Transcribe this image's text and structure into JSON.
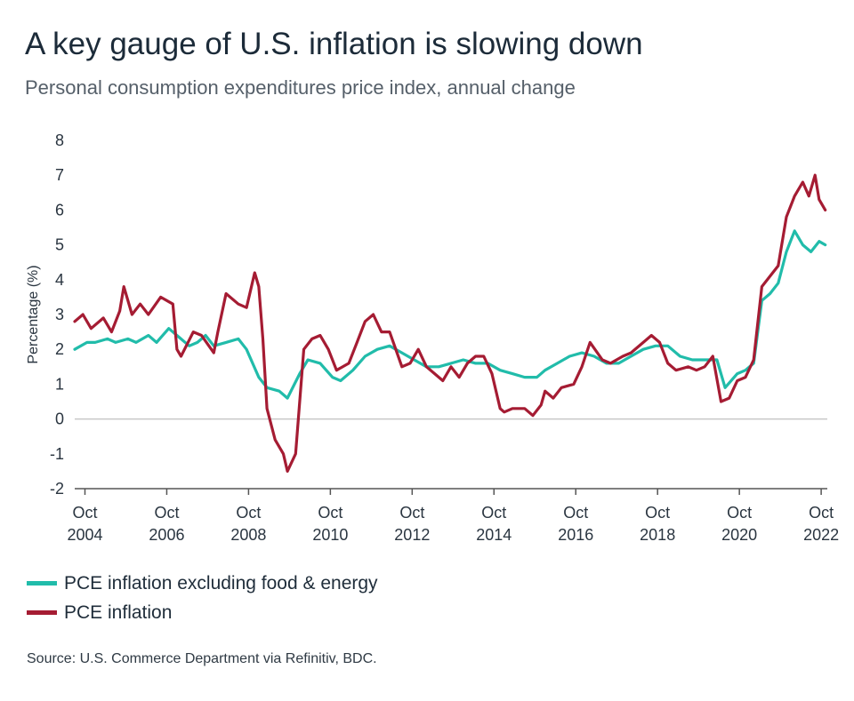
{
  "title": "A key gauge of U.S. inflation is slowing down",
  "subtitle": "Personal consumption expenditures price index, annual change",
  "source": "Source: U.S. Commerce Department via Refinitiv, BDC.",
  "colors": {
    "core": "#21bcaa",
    "headline": "#a51c33",
    "zero_line": "#c8c8c8",
    "axis": "#555555"
  },
  "chart_data": {
    "type": "line",
    "ylabel": "Percentage (%)",
    "ylim": [
      -2,
      8
    ],
    "yticks": [
      -2,
      -1,
      0,
      1,
      2,
      3,
      4,
      5,
      6,
      7,
      8
    ],
    "xlim": [
      2004.5,
      2022.9
    ],
    "xticks": [
      {
        "x": 2004.75,
        "month": "Oct",
        "year": "2004"
      },
      {
        "x": 2006.75,
        "month": "Oct",
        "year": "2006"
      },
      {
        "x": 2008.75,
        "month": "Oct",
        "year": "2008"
      },
      {
        "x": 2010.75,
        "month": "Oct",
        "year": "2010"
      },
      {
        "x": 2012.75,
        "month": "Oct",
        "year": "2012"
      },
      {
        "x": 2014.75,
        "month": "Oct",
        "year": "2014"
      },
      {
        "x": 2016.75,
        "month": "Oct",
        "year": "2016"
      },
      {
        "x": 2018.75,
        "month": "Oct",
        "year": "2018"
      },
      {
        "x": 2020.75,
        "month": "Oct",
        "year": "2020"
      },
      {
        "x": 2022.75,
        "month": "Oct",
        "year": "2022"
      }
    ],
    "series": [
      {
        "name": "PCE inflation excluding food & energy",
        "color": "#21bcaa",
        "points": [
          [
            2004.5,
            2.0
          ],
          [
            2004.8,
            2.2
          ],
          [
            2005.0,
            2.2
          ],
          [
            2005.3,
            2.3
          ],
          [
            2005.5,
            2.2
          ],
          [
            2005.8,
            2.3
          ],
          [
            2006.0,
            2.2
          ],
          [
            2006.3,
            2.4
          ],
          [
            2006.5,
            2.2
          ],
          [
            2006.8,
            2.6
          ],
          [
            2007.0,
            2.4
          ],
          [
            2007.3,
            2.1
          ],
          [
            2007.5,
            2.2
          ],
          [
            2007.7,
            2.4
          ],
          [
            2007.9,
            2.1
          ],
          [
            2008.2,
            2.2
          ],
          [
            2008.5,
            2.3
          ],
          [
            2008.7,
            2.0
          ],
          [
            2009.0,
            1.2
          ],
          [
            2009.2,
            0.9
          ],
          [
            2009.5,
            0.8
          ],
          [
            2009.7,
            0.6
          ],
          [
            2010.0,
            1.3
          ],
          [
            2010.2,
            1.7
          ],
          [
            2010.5,
            1.6
          ],
          [
            2010.8,
            1.2
          ],
          [
            2011.0,
            1.1
          ],
          [
            2011.3,
            1.4
          ],
          [
            2011.6,
            1.8
          ],
          [
            2011.9,
            2.0
          ],
          [
            2012.2,
            2.1
          ],
          [
            2012.5,
            1.9
          ],
          [
            2012.8,
            1.7
          ],
          [
            2013.1,
            1.5
          ],
          [
            2013.4,
            1.5
          ],
          [
            2013.7,
            1.6
          ],
          [
            2014.0,
            1.7
          ],
          [
            2014.3,
            1.6
          ],
          [
            2014.6,
            1.6
          ],
          [
            2014.9,
            1.4
          ],
          [
            2015.2,
            1.3
          ],
          [
            2015.5,
            1.2
          ],
          [
            2015.8,
            1.2
          ],
          [
            2016.0,
            1.4
          ],
          [
            2016.3,
            1.6
          ],
          [
            2016.6,
            1.8
          ],
          [
            2016.9,
            1.9
          ],
          [
            2017.2,
            1.8
          ],
          [
            2017.5,
            1.6
          ],
          [
            2017.8,
            1.6
          ],
          [
            2018.1,
            1.8
          ],
          [
            2018.4,
            2.0
          ],
          [
            2018.7,
            2.1
          ],
          [
            2019.0,
            2.1
          ],
          [
            2019.3,
            1.8
          ],
          [
            2019.6,
            1.7
          ],
          [
            2019.9,
            1.7
          ],
          [
            2020.2,
            1.7
          ],
          [
            2020.4,
            0.9
          ],
          [
            2020.7,
            1.3
          ],
          [
            2020.9,
            1.4
          ],
          [
            2021.1,
            1.6
          ],
          [
            2021.3,
            3.4
          ],
          [
            2021.5,
            3.6
          ],
          [
            2021.7,
            3.9
          ],
          [
            2021.9,
            4.8
          ],
          [
            2022.1,
            5.4
          ],
          [
            2022.3,
            5.0
          ],
          [
            2022.5,
            4.8
          ],
          [
            2022.7,
            5.1
          ],
          [
            2022.85,
            5.0
          ]
        ]
      },
      {
        "name": "PCE inflation",
        "color": "#a51c33",
        "points": [
          [
            2004.5,
            2.8
          ],
          [
            2004.7,
            3.0
          ],
          [
            2004.9,
            2.6
          ],
          [
            2005.2,
            2.9
          ],
          [
            2005.4,
            2.5
          ],
          [
            2005.6,
            3.1
          ],
          [
            2005.7,
            3.8
          ],
          [
            2005.9,
            3.0
          ],
          [
            2006.1,
            3.3
          ],
          [
            2006.3,
            3.0
          ],
          [
            2006.6,
            3.5
          ],
          [
            2006.9,
            3.3
          ],
          [
            2007.0,
            2.0
          ],
          [
            2007.1,
            1.8
          ],
          [
            2007.4,
            2.5
          ],
          [
            2007.6,
            2.4
          ],
          [
            2007.9,
            1.9
          ],
          [
            2008.0,
            2.5
          ],
          [
            2008.2,
            3.6
          ],
          [
            2008.5,
            3.3
          ],
          [
            2008.7,
            3.2
          ],
          [
            2008.9,
            4.2
          ],
          [
            2009.0,
            3.8
          ],
          [
            2009.1,
            2.3
          ],
          [
            2009.2,
            0.3
          ],
          [
            2009.4,
            -0.6
          ],
          [
            2009.6,
            -1.0
          ],
          [
            2009.7,
            -1.5
          ],
          [
            2009.9,
            -1.0
          ],
          [
            2010.1,
            2.0
          ],
          [
            2010.3,
            2.3
          ],
          [
            2010.5,
            2.4
          ],
          [
            2010.7,
            2.0
          ],
          [
            2010.9,
            1.4
          ],
          [
            2011.2,
            1.6
          ],
          [
            2011.4,
            2.2
          ],
          [
            2011.6,
            2.8
          ],
          [
            2011.8,
            3.0
          ],
          [
            2012.0,
            2.5
          ],
          [
            2012.2,
            2.5
          ],
          [
            2012.5,
            1.5
          ],
          [
            2012.7,
            1.6
          ],
          [
            2012.9,
            2.0
          ],
          [
            2013.1,
            1.5
          ],
          [
            2013.3,
            1.3
          ],
          [
            2013.5,
            1.1
          ],
          [
            2013.7,
            1.5
          ],
          [
            2013.9,
            1.2
          ],
          [
            2014.1,
            1.6
          ],
          [
            2014.3,
            1.8
          ],
          [
            2014.5,
            1.8
          ],
          [
            2014.7,
            1.3
          ],
          [
            2014.9,
            0.3
          ],
          [
            2015.0,
            0.2
          ],
          [
            2015.2,
            0.3
          ],
          [
            2015.5,
            0.3
          ],
          [
            2015.7,
            0.1
          ],
          [
            2015.9,
            0.4
          ],
          [
            2016.0,
            0.8
          ],
          [
            2016.2,
            0.6
          ],
          [
            2016.4,
            0.9
          ],
          [
            2016.7,
            1.0
          ],
          [
            2016.9,
            1.5
          ],
          [
            2017.1,
            2.2
          ],
          [
            2017.4,
            1.7
          ],
          [
            2017.6,
            1.6
          ],
          [
            2017.9,
            1.8
          ],
          [
            2018.1,
            1.9
          ],
          [
            2018.4,
            2.2
          ],
          [
            2018.6,
            2.4
          ],
          [
            2018.8,
            2.2
          ],
          [
            2019.0,
            1.6
          ],
          [
            2019.2,
            1.4
          ],
          [
            2019.5,
            1.5
          ],
          [
            2019.7,
            1.4
          ],
          [
            2019.9,
            1.5
          ],
          [
            2020.1,
            1.8
          ],
          [
            2020.3,
            0.5
          ],
          [
            2020.5,
            0.6
          ],
          [
            2020.7,
            1.1
          ],
          [
            2020.9,
            1.2
          ],
          [
            2021.1,
            1.7
          ],
          [
            2021.3,
            3.8
          ],
          [
            2021.5,
            4.1
          ],
          [
            2021.7,
            4.4
          ],
          [
            2021.9,
            5.8
          ],
          [
            2022.1,
            6.4
          ],
          [
            2022.3,
            6.8
          ],
          [
            2022.45,
            6.4
          ],
          [
            2022.6,
            7.0
          ],
          [
            2022.7,
            6.3
          ],
          [
            2022.85,
            6.0
          ]
        ]
      }
    ]
  }
}
